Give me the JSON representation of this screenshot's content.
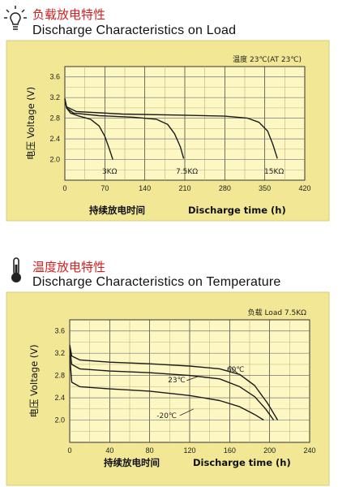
{
  "colors": {
    "panel_bg": "#f1e794",
    "plot_bg": "#fdf7c3",
    "frame": "#d9ce7a",
    "curve": "#1a1a1a",
    "grid": "#bdb27a",
    "title_red": "#d21f1f"
  },
  "charts": [
    {
      "title_cn": "负载放电特性",
      "title_en": "Discharge Characteristics on Load",
      "icon": "lightbulb-icon",
      "note": "温度 23℃(AT 23℃)",
      "ylabel": "电压 Voltage (V)",
      "xlabel_cn": "持续放电时间",
      "xlabel_en": "Discharge time (h)"
    },
    {
      "title_cn": "温度放电特性",
      "title_en": "Discharge Characteristics on Temperature",
      "icon": "thermometer-icon",
      "note": "负载  Load 7.5KΩ",
      "ylabel": "电压 Voltage (V)",
      "xlabel_cn": "持续放电时间",
      "xlabel_en": "Discharge time (h)"
    }
  ],
  "chart_data": [
    {
      "type": "line",
      "title": "Discharge Characteristics on Load",
      "xlabel": "Discharge time (h)",
      "ylabel": "电压 Voltage (V)",
      "xlim": [
        0,
        420
      ],
      "ylim": [
        1.6,
        3.8
      ],
      "xticks": [
        0,
        70,
        140,
        210,
        280,
        350,
        420
      ],
      "yticks": [
        2.0,
        2.4,
        2.8,
        3.2,
        3.6
      ],
      "grid": true,
      "series": [
        {
          "name": "3KΩ",
          "x": [
            0,
            3,
            10,
            25,
            45,
            60,
            70,
            78,
            84
          ],
          "y": [
            3.18,
            3.0,
            2.9,
            2.84,
            2.78,
            2.65,
            2.45,
            2.2,
            2.0
          ]
        },
        {
          "name": "7.5KΩ",
          "x": [
            0,
            3,
            15,
            60,
            120,
            160,
            180,
            192,
            202,
            208
          ],
          "y": [
            3.18,
            3.0,
            2.9,
            2.85,
            2.82,
            2.78,
            2.68,
            2.5,
            2.25,
            2.02
          ]
        },
        {
          "name": "15KΩ",
          "x": [
            0,
            3,
            20,
            100,
            200,
            280,
            320,
            340,
            355,
            364,
            372
          ],
          "y": [
            3.18,
            3.02,
            2.93,
            2.88,
            2.86,
            2.84,
            2.8,
            2.72,
            2.55,
            2.3,
            2.02
          ]
        }
      ]
    },
    {
      "type": "line",
      "title": "Discharge Characteristics on Temperature",
      "xlabel": "Discharge time (h)",
      "ylabel": "电压 Voltage (V)",
      "xlim": [
        0,
        240
      ],
      "ylim": [
        1.6,
        3.8
      ],
      "xticks": [
        0,
        40,
        80,
        120,
        160,
        200,
        240
      ],
      "yticks": [
        2.0,
        2.4,
        2.8,
        3.2,
        3.6
      ],
      "grid": true,
      "series": [
        {
          "name": "60℃",
          "x": [
            0,
            2,
            10,
            40,
            80,
            120,
            150,
            170,
            185,
            198,
            208
          ],
          "y": [
            3.35,
            3.15,
            3.08,
            3.04,
            3.01,
            2.97,
            2.92,
            2.82,
            2.62,
            2.3,
            2.0
          ]
        },
        {
          "name": "23℃",
          "x": [
            0,
            2,
            10,
            40,
            80,
            120,
            150,
            170,
            185,
            196,
            204
          ],
          "y": [
            3.3,
            3.0,
            2.92,
            2.88,
            2.85,
            2.8,
            2.74,
            2.6,
            2.42,
            2.2,
            2.0
          ]
        },
        {
          "name": "-20℃",
          "x": [
            0,
            2,
            10,
            40,
            80,
            120,
            150,
            170,
            185,
            194
          ],
          "y": [
            3.15,
            2.68,
            2.6,
            2.56,
            2.52,
            2.44,
            2.35,
            2.24,
            2.1,
            2.0
          ]
        }
      ],
      "annotations": [
        {
          "text": "60℃",
          "x": 166,
          "y": 2.87
        },
        {
          "text": "23℃",
          "x": 107,
          "y": 2.68
        },
        {
          "text": "-20℃",
          "x": 97,
          "y": 2.04
        }
      ]
    }
  ]
}
